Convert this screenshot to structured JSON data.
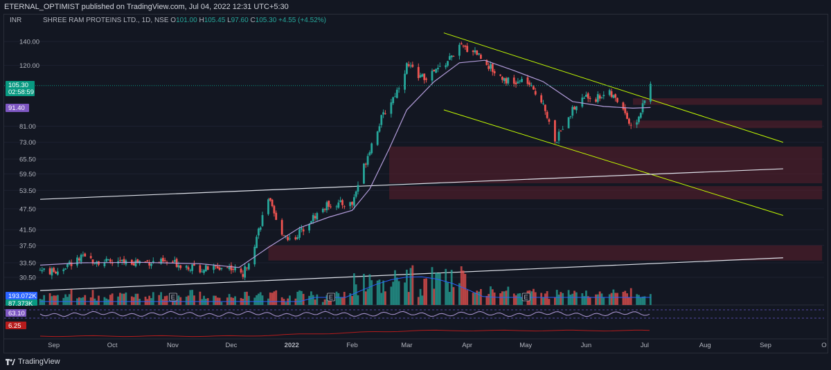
{
  "header": {
    "publish_line": "ETERNAL_OPTIMIST published on TradingView.com, Jul 04, 2022 12:31 UTC+5:30"
  },
  "legend": {
    "currency": "INR",
    "symbol": "SHREE RAM PROTEINS LTD., 1D, NSE",
    "o_label": "O",
    "o_value": "101.00",
    "h_label": "H",
    "h_value": "105.45",
    "l_label": "L",
    "l_value": "97.60",
    "c_label": "C",
    "c_value": "105.30",
    "change": "+4.55 (+4.52%)"
  },
  "footer": {
    "brand": "TradingView"
  },
  "colors": {
    "up": "#26a69a",
    "down": "#ef5350",
    "ma": "#b39ddb",
    "trendline": "#c6ff00",
    "bg": "#131722"
  },
  "chart_data": {
    "type": "candlestick",
    "title": "SHREE RAM PROTEINS LTD., 1D, NSE",
    "y_axis": {
      "scale": "log",
      "ticks": [
        "140.00",
        "120.00",
        "81.00",
        "73.00",
        "65.50",
        "59.50",
        "53.50",
        "47.50",
        "41.50",
        "37.50",
        "33.50",
        "30.50"
      ]
    },
    "x_axis": {
      "ticks": [
        "Sep",
        "Oct",
        "Nov",
        "Dec",
        "2022",
        "Feb",
        "Mar",
        "Apr",
        "May",
        "Jun",
        "Jul",
        "Aug",
        "Sep",
        "O"
      ]
    },
    "price_tags": [
      {
        "value": "105.30",
        "sub": "02:58:59",
        "color": "#089981"
      },
      {
        "value": "91.40",
        "color": "#7e57c2"
      }
    ],
    "volume_tags": [
      {
        "value": "193.072K",
        "color": "#2962ff"
      },
      {
        "value": "87.373K",
        "color": "#089981"
      }
    ],
    "oscillator_tags": [
      {
        "value": "63.10",
        "color": "#7e57c2"
      },
      {
        "value": "6.25",
        "color": "#b71c1c"
      }
    ],
    "event_markers": [
      "E",
      "E",
      "E"
    ],
    "close_path": [
      [
        "2021-08-25",
        32
      ],
      [
        "2021-09-01",
        31.5
      ],
      [
        "2021-09-15",
        34.5
      ],
      [
        "2021-10-01",
        33.5
      ],
      [
        "2021-10-15",
        33.8
      ],
      [
        "2021-11-01",
        33.5
      ],
      [
        "2021-11-15",
        32.2
      ],
      [
        "2021-12-01",
        32.6
      ],
      [
        "2021-12-07",
        31
      ],
      [
        "2021-12-12",
        36.5
      ],
      [
        "2021-12-20",
        51
      ],
      [
        "2021-12-25",
        42
      ],
      [
        "2022-01-01",
        38.5
      ],
      [
        "2022-01-10",
        44
      ],
      [
        "2022-01-20",
        49
      ],
      [
        "2022-02-01",
        49
      ],
      [
        "2022-02-05",
        58
      ],
      [
        "2022-02-10",
        70
      ],
      [
        "2022-02-16",
        85
      ],
      [
        "2022-02-24",
        102
      ],
      [
        "2022-03-01",
        120
      ],
      [
        "2022-03-10",
        110
      ],
      [
        "2022-03-20",
        120
      ],
      [
        "2022-03-28",
        135
      ],
      [
        "2022-04-05",
        132
      ],
      [
        "2022-04-15",
        115
      ],
      [
        "2022-04-25",
        106
      ],
      [
        "2022-05-01",
        110
      ],
      [
        "2022-05-05",
        101
      ],
      [
        "2022-05-10",
        95
      ],
      [
        "2022-05-16",
        72
      ],
      [
        "2022-05-22",
        86
      ],
      [
        "2022-05-31",
        98
      ],
      [
        "2022-06-06",
        97
      ],
      [
        "2022-06-12",
        101
      ],
      [
        "2022-06-20",
        92
      ],
      [
        "2022-06-24",
        80
      ],
      [
        "2022-06-28",
        86
      ],
      [
        "2022-07-04",
        105.3
      ]
    ],
    "ma_path": [
      [
        "2021-08-25",
        33
      ],
      [
        "2021-09-15",
        33.5
      ],
      [
        "2021-10-15",
        33.6
      ],
      [
        "2021-11-15",
        33.3
      ],
      [
        "2021-12-05",
        32.5
      ],
      [
        "2021-12-20",
        37
      ],
      [
        "2022-01-05",
        42
      ],
      [
        "2022-01-20",
        45
      ],
      [
        "2022-02-01",
        47
      ],
      [
        "2022-02-10",
        54
      ],
      [
        "2022-02-20",
        70
      ],
      [
        "2022-03-01",
        90
      ],
      [
        "2022-03-15",
        108
      ],
      [
        "2022-03-28",
        122
      ],
      [
        "2022-04-10",
        124
      ],
      [
        "2022-04-25",
        116
      ],
      [
        "2022-05-10",
        108
      ],
      [
        "2022-05-25",
        95
      ],
      [
        "2022-06-10",
        92
      ],
      [
        "2022-06-25",
        91
      ],
      [
        "2022-07-04",
        91.4
      ]
    ],
    "trendlines": [
      {
        "name": "channel-top",
        "points": [
          [
            "2022-03-20",
            148
          ],
          [
            "2022-09-10",
            73
          ]
        ]
      },
      {
        "name": "channel-bottom",
        "points": [
          [
            "2022-03-20",
            90
          ],
          [
            "2022-09-10",
            45.5
          ]
        ]
      },
      {
        "name": "support-upper",
        "points": [
          [
            "2021-08-25",
            50.5
          ],
          [
            "2022-09-10",
            61.5
          ]
        ]
      },
      {
        "name": "support-lower",
        "points": [
          [
            "2021-08-25",
            28
          ],
          [
            "2022-09-10",
            34.6
          ]
        ]
      }
    ],
    "zones": [
      [
        [
          "2022-06-25",
          "2022-09-30"
        ],
        [
          97,
          93
        ]
      ],
      [
        [
          "2022-06-25",
          "2022-09-30"
        ],
        [
          84,
          80
        ]
      ],
      [
        [
          "2022-02-20",
          "2022-09-30"
        ],
        [
          71,
          56
        ]
      ],
      [
        [
          "2022-02-20",
          "2022-09-30"
        ],
        [
          55,
          50.5
        ]
      ],
      [
        [
          "2021-12-20",
          "2022-09-30"
        ],
        [
          37.5,
          34
        ]
      ]
    ]
  }
}
